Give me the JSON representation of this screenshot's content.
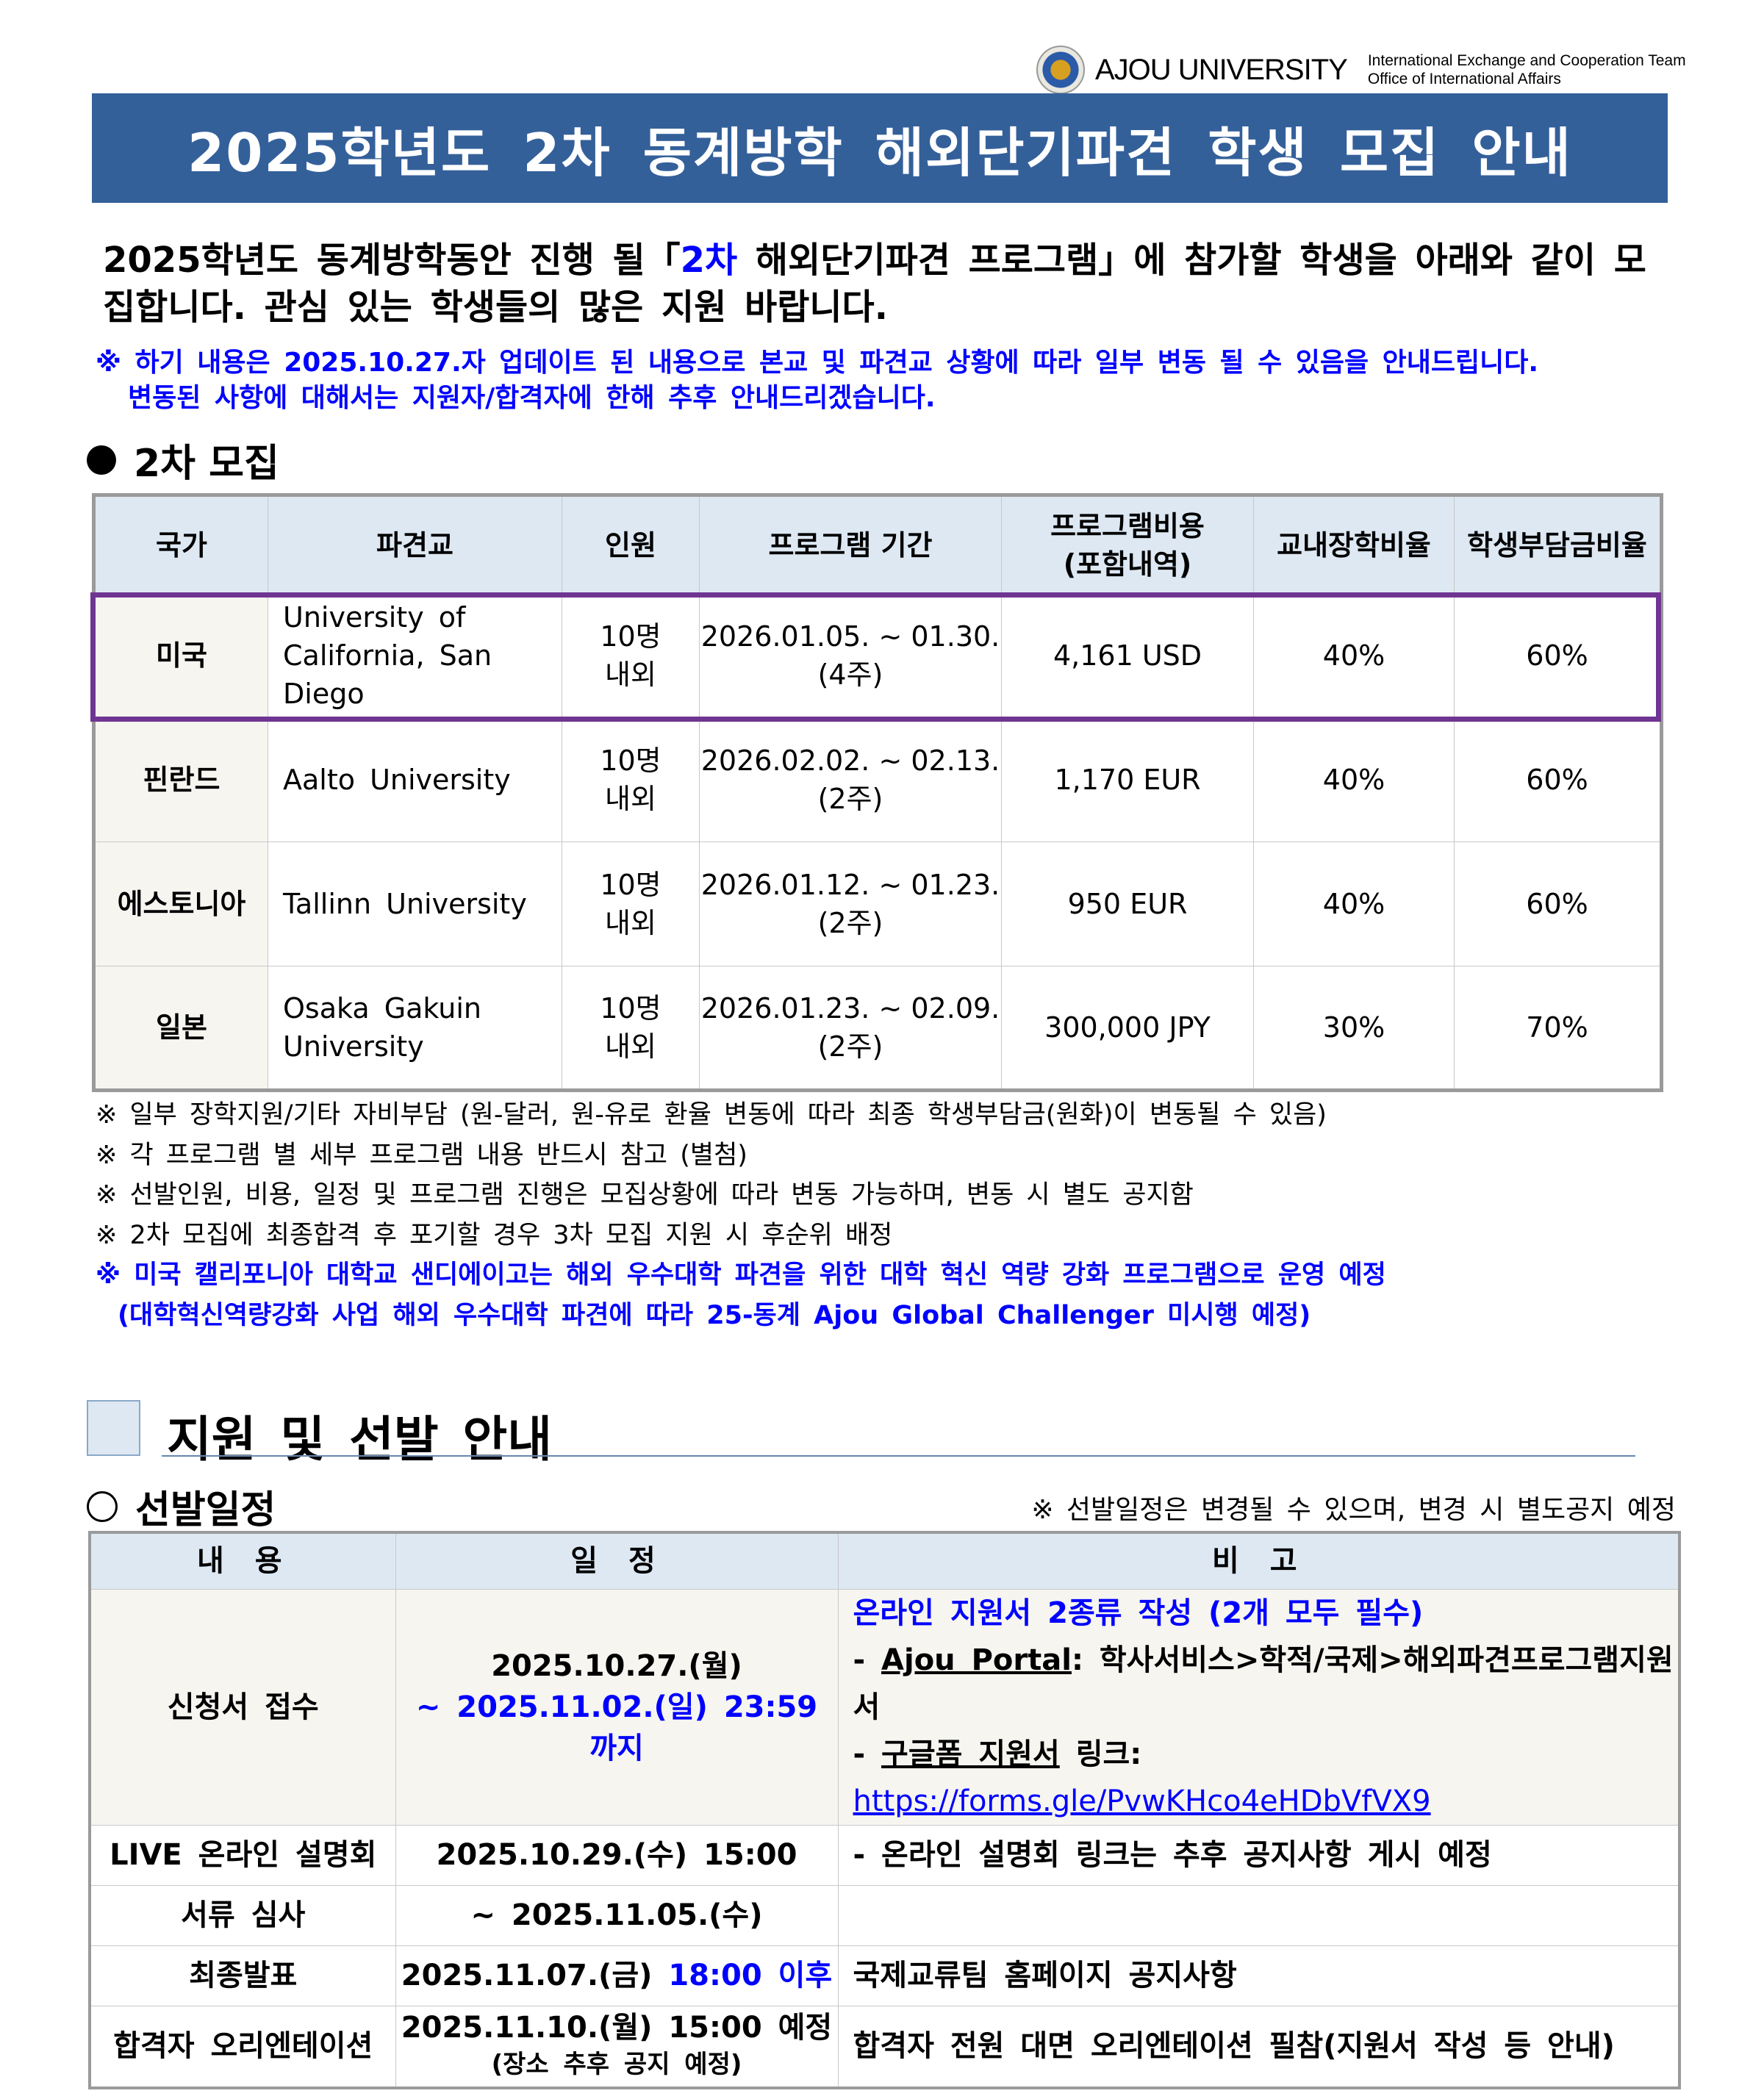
{
  "header": {
    "university": "AJOU UNIVERSITY",
    "team_line1": "International Exchange and Cooperation Team",
    "team_line2": "Office of International Affairs",
    "title": "2025학년도 2차 동계방학 해외단기파견 학생 모집 안내",
    "accent": "#34609a"
  },
  "intro": {
    "part1": "2025학년도 동계방학동안 진행 될「",
    "highlight": "2차",
    "part2": " 해외단기파견 프로그램」에 참가할 학생을 아래와 같이 모집합니다. 관심 있는 학생들의 많은 지원 바랍니다."
  },
  "notice": {
    "line1": "※ 하기 내용은 2025.10.27.자 업데이트 된 내용으로 본교 및 파견교 상황에 따라 일부 변동 될 수 있음을 안내드립니다.",
    "line2": "변동된 사항에 대해서는 지원자/합격자에 한해 추후 안내드리겠습니다."
  },
  "section1": {
    "title": "2차 모집"
  },
  "table1": {
    "headers": [
      "국가",
      "파견교",
      "인원",
      "프로그램 기간",
      "프로그램비용\n(포함내역)",
      "교내장학비율",
      "학생부담금비율"
    ],
    "rows": [
      {
        "country": "미국",
        "school": "University of California, San Diego",
        "quota": "10명 내외",
        "period": "2026.01.05. ~ 01.30.",
        "weeks": "(4주)",
        "cost": "4,161 USD",
        "scholarship": "40%",
        "student": "60%",
        "highlighted": true
      },
      {
        "country": "핀란드",
        "school": "Aalto University",
        "quota": "10명 내외",
        "period": "2026.02.02. ~ 02.13.",
        "weeks": "(2주)",
        "cost": "1,170 EUR",
        "scholarship": "40%",
        "student": "60%"
      },
      {
        "country": "에스토니아",
        "school": "Tallinn University",
        "quota": "10명 내외",
        "period": "2026.01.12. ~ 01.23.",
        "weeks": "(2주)",
        "cost": "950 EUR",
        "scholarship": "40%",
        "student": "60%"
      },
      {
        "country": "일본",
        "school": "Osaka Gakuin University",
        "quota": "10명 내외",
        "period": "2026.01.23. ~ 02.09.",
        "weeks": "(2주)",
        "cost": "300,000 JPY",
        "scholarship": "30%",
        "student": "70%"
      }
    ]
  },
  "notes": [
    "※ 일부 장학지원/기타 자비부담 (원-달러, 원-유로 환율 변동에 따라 최종 학생부담금(원화)이 변동될 수 있음)",
    "※ 각 프로그램 별 세부 프로그램 내용 반드시 참고 (별첨)",
    "※ 선발인원, 비용, 일정 및 프로그램 진행은 모집상황에 따라 변동 가능하며, 변동 시 별도 공지함",
    "※ 2차 모집에 최종합격 후 포기할 경우 3차 모집 지원 시 후순위 배정",
    "※ 미국 캘리포니아 대학교 샌디에이고는 해외 우수대학 파견을 위한 대학 혁신 역량 강화 프로그램으로 운영 예정",
    " (대학혁신역량강화 사업 해외 우수대학 파견에 따라 25-동계 Ajou Global Challenger 미시행 예정)"
  ],
  "section2": {
    "title": "지원 및 선발 안내",
    "schedule_title": "선발일정",
    "schedule_note": "※ 선발일정은 변경될 수 있으며, 변경 시 별도공지 예정"
  },
  "table2": {
    "headers": [
      "내 용",
      "일 정",
      "비 고"
    ],
    "r1": {
      "item": "신청서 접수",
      "date1": "2025.10.27.(월)",
      "date2": "~ 2025.11.02.(일) 23:59 까지",
      "note_title": "온라인 지원서 2종류 작성 (2개 모두 필수)",
      "portal_label": "Ajou Portal",
      "portal_path": ": 학사서비스>학적/국제>해외파견프로그램지원서",
      "form_label": "구글폼 지원서",
      "form_mid": " 링크: ",
      "form_url": "https://forms.gle/PvwKHco4eHDbVfVX9"
    },
    "r2": {
      "item": "LIVE 온라인 설명회",
      "date": "2025.10.29.(수) 15:00",
      "note": "- 온라인 설명회 링크는 추후 공지사항 게시 예정"
    },
    "r3": {
      "item": "서류 심사",
      "date": "~ 2025.11.05.(수)",
      "note": ""
    },
    "r4": {
      "item": "최종발표",
      "date": "2025.11.07.(금) ",
      "date_blue": "18:00 이후",
      "note": "국제교류팀 홈페이지 공지사항"
    },
    "r5": {
      "item": "합격자 오리엔테이션",
      "date": "2025.11.10.(월) 15:00 예정",
      "date_sub": "(장소 추후 공지 예정)",
      "note": "합격자 전원 대면 오리엔테이션 필참(지원서 작성 등 안내)"
    }
  }
}
